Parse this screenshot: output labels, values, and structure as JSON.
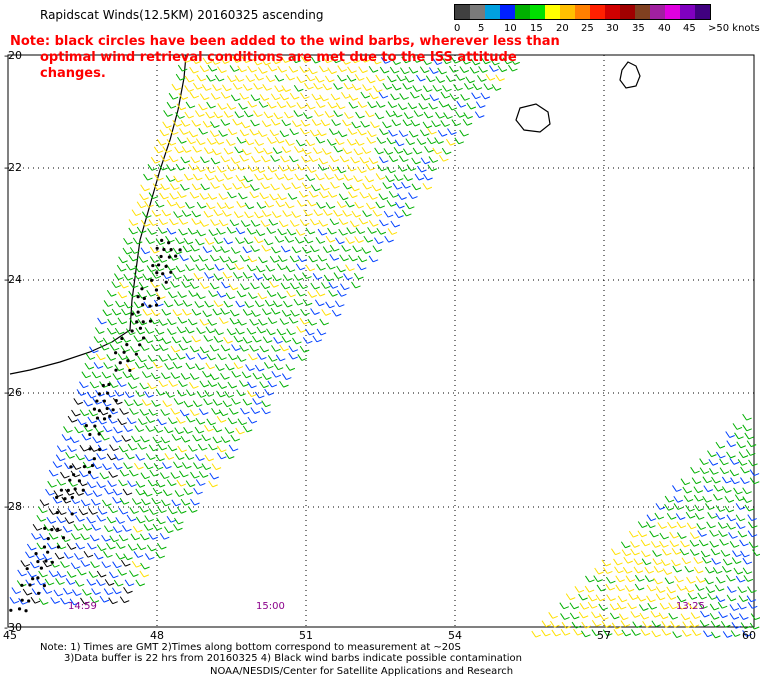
{
  "title": "Rapidscat Winds(12.5KM) 20160325 ascending",
  "note": {
    "line1": "Note: black circles have been added to the wind barbs, wherever less than",
    "line2": "optimal wind retrieval conditions are met due to the ISS attitude changes."
  },
  "legend": {
    "labels": [
      "0",
      "5",
      "10",
      "15",
      "20",
      "25",
      "30",
      "35",
      "40",
      "45",
      ">50 knots"
    ],
    "colors": [
      "#404040",
      "#7a7a7a",
      "#00a0e0",
      "#0020ff",
      "#00b000",
      "#00e000",
      "#ffff00",
      "#ffc000",
      "#ff8000",
      "#ff2000",
      "#d00000",
      "#a00000",
      "#804020",
      "#a020a0",
      "#e000e0",
      "#8000c0",
      "#400080"
    ]
  },
  "axes": {
    "lat_labels": [
      "-20",
      "-22",
      "-24",
      "-26",
      "-28",
      "-30"
    ],
    "lon_labels": [
      "45",
      "48",
      "51",
      "54",
      "57",
      "60"
    ]
  },
  "times": [
    "14:59",
    "15:00",
    "13:25"
  ],
  "footnotes": {
    "line1": "Note: 1) Times are GMT 2)Times along bottom correspond to measurement at ~20S",
    "line2": "3)Data buffer is 22 hrs from 20160325 4) Black wind barbs indicate possible contamination"
  },
  "credit": "NOAA/NESDIS/Center for Satellite Applications and Research"
}
